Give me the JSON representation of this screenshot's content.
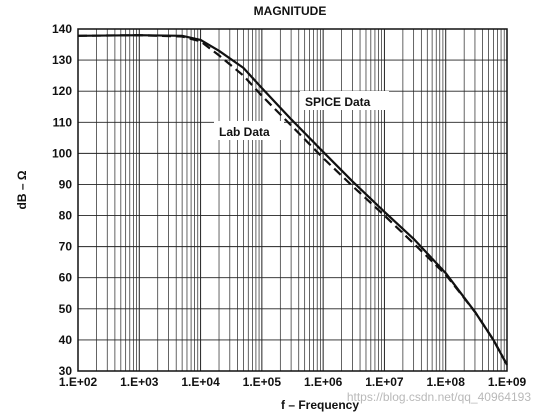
{
  "chart_data": {
    "type": "line",
    "title": "MAGNITUDE",
    "xlabel": "f – Frequency",
    "ylabel": "dB – Ω",
    "xscale": "log",
    "xlim": [
      100,
      1000000000
    ],
    "ylim": [
      30,
      140
    ],
    "grid": true,
    "x_tick_labels": [
      "1.E+02",
      "1.E+03",
      "1.E+04",
      "1.E+05",
      "1.E+06",
      "1.E+07",
      "1.E+08",
      "1.E+09"
    ],
    "y_tick_labels": [
      "140",
      "130",
      "120",
      "110",
      "100",
      "90",
      "80",
      "70",
      "60",
      "50",
      "40",
      "30"
    ],
    "series": [
      {
        "name": "SPICE Data",
        "style": "solid",
        "points": [
          [
            100,
            137.8
          ],
          [
            1000,
            138
          ],
          [
            5000,
            137.8
          ],
          [
            10000,
            136.5
          ],
          [
            20000,
            133
          ],
          [
            50000,
            127.5
          ],
          [
            100000,
            121
          ],
          [
            300000,
            111
          ],
          [
            1000000,
            100.5
          ],
          [
            3000000,
            91
          ],
          [
            10000000,
            81.2
          ],
          [
            30000000,
            72.5
          ],
          [
            100000000,
            61.5
          ],
          [
            300000000,
            49
          ],
          [
            600000000,
            40
          ],
          [
            1000000000,
            32
          ]
        ]
      },
      {
        "name": "Lab Data",
        "style": "dashed",
        "points": [
          [
            100,
            137.8
          ],
          [
            1000,
            138
          ],
          [
            5000,
            137.6
          ],
          [
            10000,
            136
          ],
          [
            20000,
            131.5
          ],
          [
            50000,
            125
          ],
          [
            100000,
            118.5
          ],
          [
            300000,
            109
          ],
          [
            1000000,
            98.5
          ],
          [
            3000000,
            89.5
          ],
          [
            10000000,
            80
          ],
          [
            30000000,
            71
          ],
          [
            100000000,
            61
          ],
          [
            300000000,
            49
          ],
          [
            600000000,
            40
          ],
          [
            1000000000,
            32
          ]
        ]
      }
    ],
    "annotations": [
      "SPICE Data",
      "Lab Data"
    ]
  },
  "watermark": "https://blog.csdn.net/qq_40964193"
}
